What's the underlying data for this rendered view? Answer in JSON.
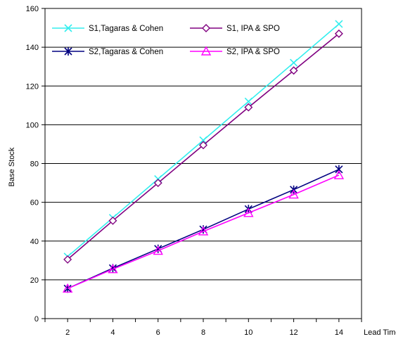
{
  "chart_data": {
    "type": "line",
    "title": "",
    "xlabel": "Lead Time",
    "ylabel": "Base Stock",
    "x": [
      2,
      4,
      6,
      8,
      10,
      12,
      14
    ],
    "xlim": [
      1,
      15
    ],
    "ylim": [
      0,
      160
    ],
    "yticks": [
      0,
      20,
      40,
      60,
      80,
      100,
      120,
      140,
      160
    ],
    "grid": "horizontal",
    "legend": "top-left",
    "series": [
      {
        "name": "S1,Tagaras & Cohen",
        "marker": "x",
        "color": "#33eeee",
        "values": [
          32,
          52,
          72,
          92,
          112,
          132,
          152
        ]
      },
      {
        "name": "S1, IPA & SPO",
        "marker": "diamond",
        "color": "#800080",
        "values": [
          30.5,
          50.5,
          70,
          89.5,
          109,
          128,
          147
        ]
      },
      {
        "name": "S2,Tagaras & Cohen",
        "marker": "star",
        "color": "#000080",
        "values": [
          15.5,
          26,
          36,
          46,
          56.5,
          66.5,
          77
        ]
      },
      {
        "name": "S2, IPA & SPO",
        "marker": "triangle",
        "color": "#ff00ff",
        "values": [
          15.5,
          25.5,
          35,
          45,
          54.5,
          64,
          74
        ]
      }
    ]
  }
}
